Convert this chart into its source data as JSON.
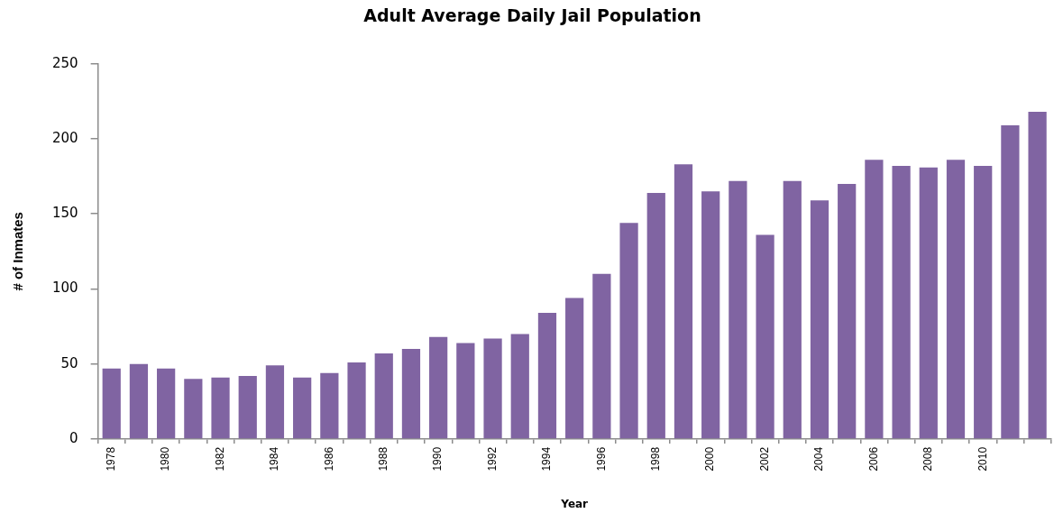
{
  "chart_data": {
    "type": "bar",
    "title": "Adult Average Daily Jail Population",
    "xlabel": "Year",
    "ylabel": "# of Inmates",
    "categories": [
      "1978",
      null,
      "1980",
      null,
      "1982",
      null,
      "1984",
      null,
      "1986",
      null,
      "1988",
      null,
      "1990",
      null,
      "1992",
      null,
      "1994",
      null,
      "1996",
      null,
      "1998",
      null,
      "2000",
      null,
      "2002",
      null,
      "2004",
      null,
      "2006",
      null,
      "2008",
      null,
      "2010",
      null,
      null
    ],
    "values": [
      47,
      50,
      47,
      40,
      41,
      42,
      49,
      41,
      44,
      51,
      57,
      60,
      68,
      64,
      67,
      70,
      84,
      94,
      110,
      144,
      164,
      183,
      165,
      172,
      136,
      172,
      159,
      170,
      186,
      182,
      181,
      186,
      182,
      209,
      218
    ],
    "color": "#8064a2",
    "ylim": [
      0,
      250
    ],
    "yticks": [
      0,
      50,
      100,
      150,
      200,
      250
    ]
  }
}
